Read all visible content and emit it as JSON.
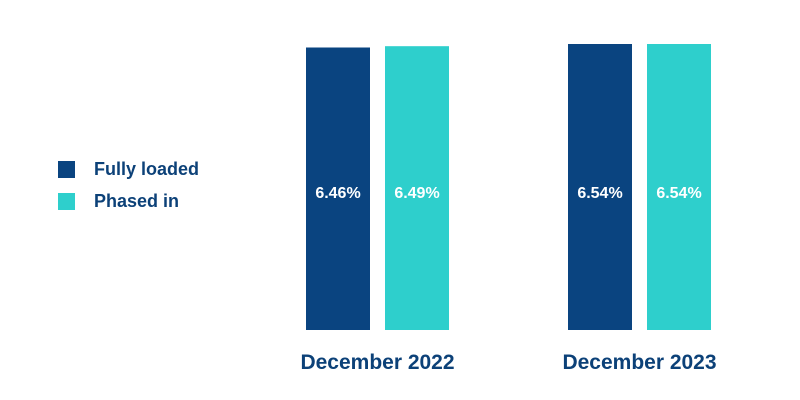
{
  "chart_data": {
    "type": "bar",
    "categories": [
      "December 2022",
      "December 2023"
    ],
    "series": [
      {
        "name": "Fully loaded",
        "color": "#0a4480",
        "values": [
          6.46,
          6.54
        ],
        "labels": [
          "6.46%",
          "6.54%"
        ]
      },
      {
        "name": "Phased in",
        "color": "#2ecfcc",
        "values": [
          6.49,
          6.54
        ],
        "labels": [
          "6.49%",
          "6.54%"
        ]
      }
    ],
    "legend_position": "left",
    "grid": false,
    "ylim": [
      0,
      6.54
    ]
  }
}
